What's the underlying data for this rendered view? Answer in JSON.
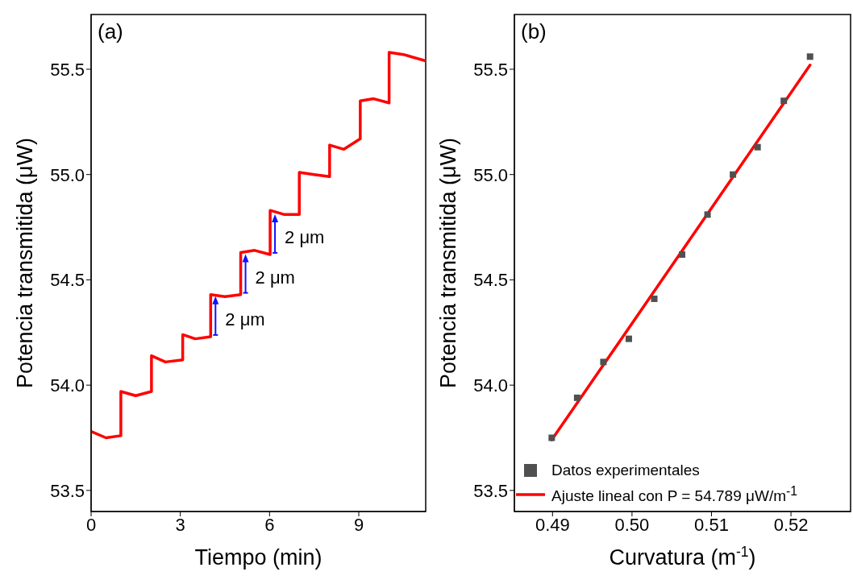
{
  "chart_data": [
    {
      "type": "line",
      "xlabel": "Tiempo (min)",
      "ylabel": "Potencia transmitida (μW)",
      "xlim": [
        0,
        11.25
      ],
      "ylim": [
        53.4,
        55.76
      ],
      "xticks": [
        0,
        3,
        6,
        9
      ],
      "yticks": [
        {
          "value": 53.5,
          "label": "53.5"
        },
        {
          "value": 54,
          "label": "54.0"
        },
        {
          "value": 54.5,
          "label": "54.5"
        },
        {
          "value": 55,
          "label": "55.0"
        },
        {
          "value": 55.5,
          "label": "55.5"
        }
      ],
      "legend": false,
      "annotations": [
        "(a)",
        {
          "text": "2 μm",
          "x": 4.02,
          "y": 54.33
        },
        {
          "text": "2 μm",
          "x": 5.03,
          "y": 54.53
        },
        {
          "text": "2 μm",
          "x": 6.02,
          "y": 54.72
        }
      ],
      "series": [
        {
          "color": "#ff0000",
          "marker": "none",
          "line_style": "solid",
          "x": [
            0,
            0.5,
            1.0,
            1.0,
            1.5,
            2.03,
            2.03,
            2.5,
            3.08,
            3.08,
            3.5,
            4.02,
            4.02,
            4.5,
            5.03,
            5.03,
            5.5,
            6.02,
            6.02,
            6.5,
            7.0,
            7.0,
            7.5,
            8.02,
            8.02,
            8.5,
            9.05,
            9.05,
            9.5,
            10.02,
            10.02,
            10.5,
            11.25
          ],
          "values": [
            53.78,
            53.75,
            53.76,
            53.97,
            53.95,
            53.97,
            54.14,
            54.11,
            54.12,
            54.24,
            54.22,
            54.23,
            54.43,
            54.42,
            54.43,
            54.63,
            54.64,
            54.62,
            54.83,
            54.81,
            54.81,
            55.01,
            55.0,
            54.99,
            55.14,
            55.12,
            55.17,
            55.35,
            55.36,
            55.34,
            55.58,
            55.57,
            55.54
          ]
        }
      ]
    },
    {
      "type": "scatter",
      "xlabel": "Curvatura (m$^{-1}$)",
      "ylabel": "Potencia transmitida (μW)",
      "xlim": [
        0.4852,
        0.5275
      ],
      "ylim": [
        53.4,
        55.76
      ],
      "xticks": [
        0.49,
        {
          "value": 0.5,
          "label": "0.50"
        },
        0.51,
        0.52
      ],
      "yticks": [
        {
          "value": 53.5,
          "label": "53.5"
        },
        {
          "value": 54,
          "label": "54.0"
        },
        {
          "value": 54.5,
          "label": "54.5"
        },
        {
          "value": 55,
          "label": "55.0"
        },
        {
          "value": 55.5,
          "label": "55.5"
        }
      ],
      "legend": "bottom left",
      "annotations": [
        "(b)"
      ],
      "series": [
        {
          "name": "Datos experimentales",
          "color": "#505050",
          "marker": "square",
          "x": [
            0.4899,
            0.4931,
            0.4964,
            0.4996,
            0.5028,
            0.5063,
            0.5095,
            0.5127,
            0.5158,
            0.5191,
            0.5224
          ],
          "values": [
            53.75,
            53.94,
            54.11,
            54.22,
            54.41,
            54.62,
            54.81,
            55.0,
            55.13,
            55.35,
            55.56
          ]
        },
        {
          "type": "line",
          "name": "Ajuste lineal con P = 54.789 μW/m$^{-1}$",
          "color": "#ff0000",
          "marker": "none",
          "line_style": "solid",
          "x": [
            0.4899,
            0.5224
          ],
          "values": [
            53.74,
            55.52
          ]
        }
      ]
    }
  ]
}
